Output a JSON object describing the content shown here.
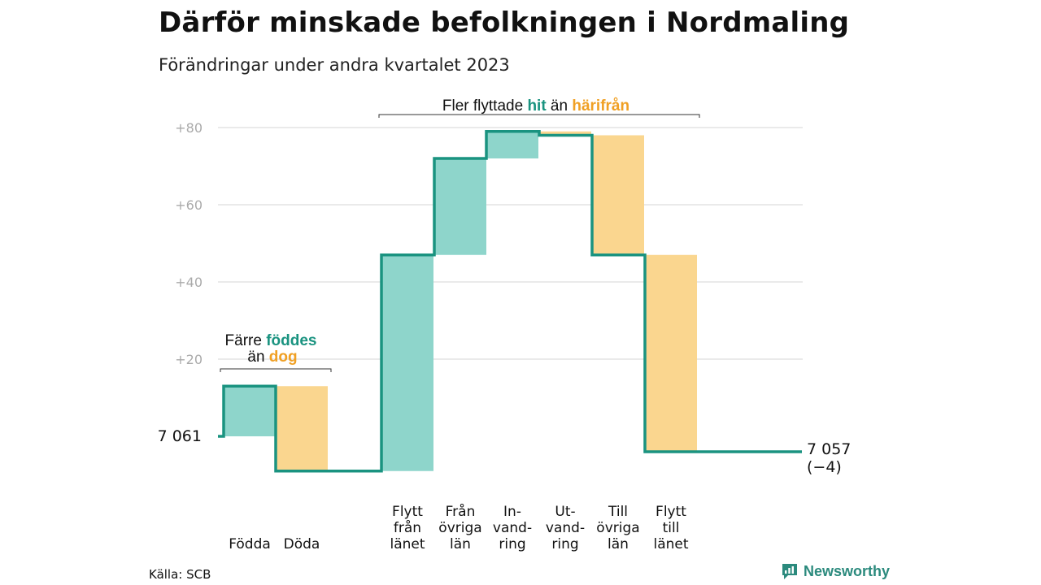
{
  "title": "Därför minskade befolkningen i Nordmaling",
  "subtitle": "Förändringar under andra kvartalet 2023",
  "source": "Källa: SCB",
  "brand": {
    "name": "Newsworthy",
    "icon": "bar-chart-speech-bubble-icon"
  },
  "colors": {
    "increase_fill": "#8ed5cb",
    "decrease_fill": "#fad68f",
    "line": "#1a9380",
    "hit_text": "#1a9380",
    "harifran_text": "#f0a024",
    "grid": "#dddddd",
    "tick_text": "#aaaaaa"
  },
  "annotations": {
    "natural": {
      "prefix": "Färre ",
      "highlight1": "föddes",
      "middle": "än ",
      "highlight2": "dog"
    },
    "migration": {
      "prefix": "Fler flyttade ",
      "highlight1": "hit",
      "middle": " än ",
      "highlight2": "härifrån"
    }
  },
  "chart_data": {
    "type": "waterfall",
    "y_ticks": [
      "+20",
      "+40",
      "+60",
      "+80"
    ],
    "ylim": [
      -10,
      80
    ],
    "grid": true,
    "start": {
      "label": "7 061",
      "value": 0
    },
    "end": {
      "label": "7 057",
      "change_label": "(−4)",
      "value": -4
    },
    "steps": [
      {
        "label_lines": [
          "Födda"
        ],
        "change": 13,
        "direction": "increase"
      },
      {
        "label_lines": [
          "Döda"
        ],
        "change": -22,
        "direction": "decrease"
      },
      {
        "label_lines": [
          "Flytt",
          "från",
          "länet"
        ],
        "change": 56,
        "direction": "increase"
      },
      {
        "label_lines": [
          "Från",
          "övriga",
          "län"
        ],
        "change": 25,
        "direction": "increase"
      },
      {
        "label_lines": [
          "In-",
          "vand-",
          "ring"
        ],
        "change": 7,
        "direction": "increase"
      },
      {
        "label_lines": [
          "Ut-",
          "vand-",
          "ring"
        ],
        "change": -1,
        "direction": "decrease"
      },
      {
        "label_lines": [
          "Till",
          "övriga",
          "län"
        ],
        "change": -31,
        "direction": "decrease"
      },
      {
        "label_lines": [
          "Flytt",
          "till",
          "länet"
        ],
        "change": -51,
        "direction": "decrease"
      }
    ]
  }
}
